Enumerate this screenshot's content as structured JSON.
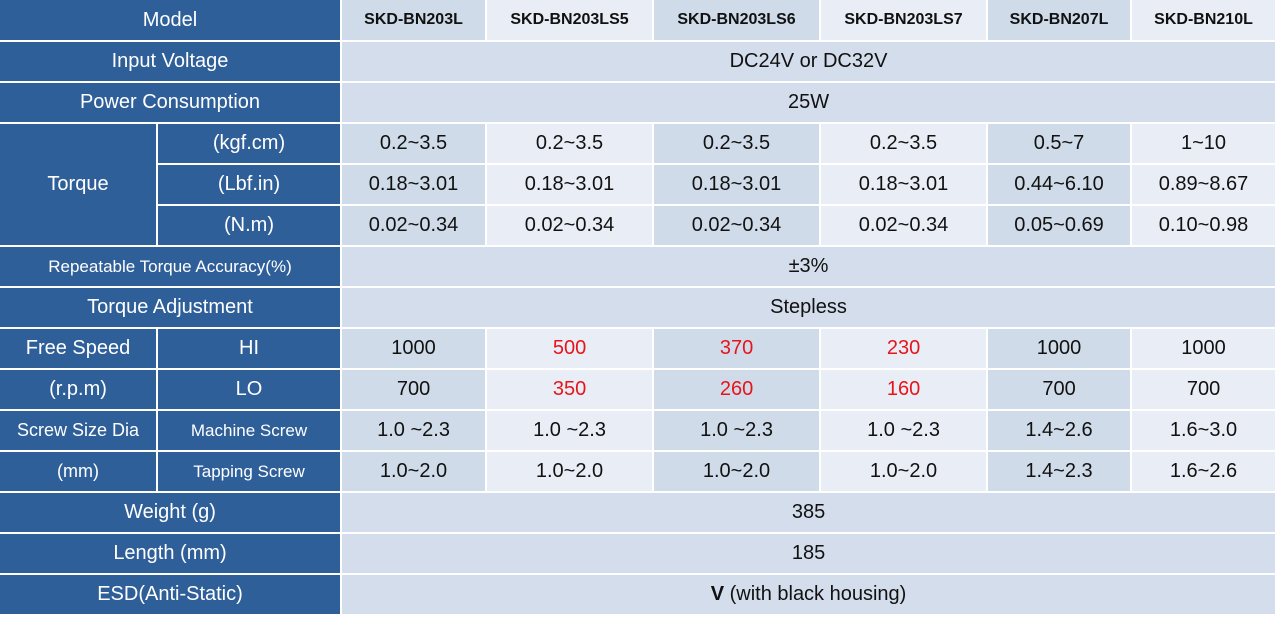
{
  "spec_table": {
    "model_label": "Model",
    "models": [
      "SKD-BN203L",
      "SKD-BN203LS5",
      "SKD-BN203LS6",
      "SKD-BN203LS7",
      "SKD-BN207L",
      "SKD-BN210L"
    ],
    "input_voltage": {
      "label": "Input Voltage",
      "value": "DC24V or DC32V"
    },
    "power_consumption": {
      "label": "Power Consumption",
      "value": "25W"
    },
    "torque": {
      "label": "Torque",
      "rows": [
        {
          "unit": "(kgf.cm)",
          "values": [
            "0.2~3.5",
            "0.2~3.5",
            "0.2~3.5",
            "0.2~3.5",
            "0.5~7",
            "1~10"
          ]
        },
        {
          "unit": "(Lbf.in)",
          "values": [
            "0.18~3.01",
            "0.18~3.01",
            "0.18~3.01",
            "0.18~3.01",
            "0.44~6.10",
            "0.89~8.67"
          ]
        },
        {
          "unit": "(N.m)",
          "values": [
            "0.02~0.34",
            "0.02~0.34",
            "0.02~0.34",
            "0.02~0.34",
            "0.05~0.69",
            "0.10~0.98"
          ]
        }
      ]
    },
    "repeatable_accuracy": {
      "label": "Repeatable Torque Accuracy(%)",
      "value": "±3%"
    },
    "torque_adjustment": {
      "label": "Torque Adjustment",
      "value": "Stepless"
    },
    "free_speed": {
      "label_line1": "Free Speed",
      "label_line2": "(r.p.m)",
      "rows": [
        {
          "mode": "HI",
          "values": [
            "1000",
            "500",
            "370",
            "230",
            "1000",
            "1000"
          ]
        },
        {
          "mode": "LO",
          "values": [
            "700",
            "350",
            "260",
            "160",
            "700",
            "700"
          ]
        }
      ]
    },
    "screw_size": {
      "label_line1": "Screw Size Dia",
      "label_line2": "(mm)",
      "rows": [
        {
          "type": "Machine Screw",
          "values": [
            "1.0 ~2.3",
            "1.0 ~2.3",
            "1.0 ~2.3",
            "1.0 ~2.3",
            "1.4~2.6",
            "1.6~3.0"
          ]
        },
        {
          "type": "Tapping Screw",
          "values": [
            "1.0~2.0",
            "1.0~2.0",
            "1.0~2.0",
            "1.0~2.0",
            "1.4~2.3",
            "1.6~2.6"
          ]
        }
      ]
    },
    "weight": {
      "label": "Weight (g)",
      "value": "385"
    },
    "length": {
      "label": "Length (mm)",
      "value": "185"
    },
    "esd": {
      "label": "ESD(Anti-Static)",
      "mark": "V",
      "note": " (with black housing)"
    },
    "colors": {
      "header_blue": "#2f5f99",
      "cell_light": "#cfdbe9",
      "cell_alt": "#e9eef6",
      "highlight_red": "#e8141b"
    }
  }
}
